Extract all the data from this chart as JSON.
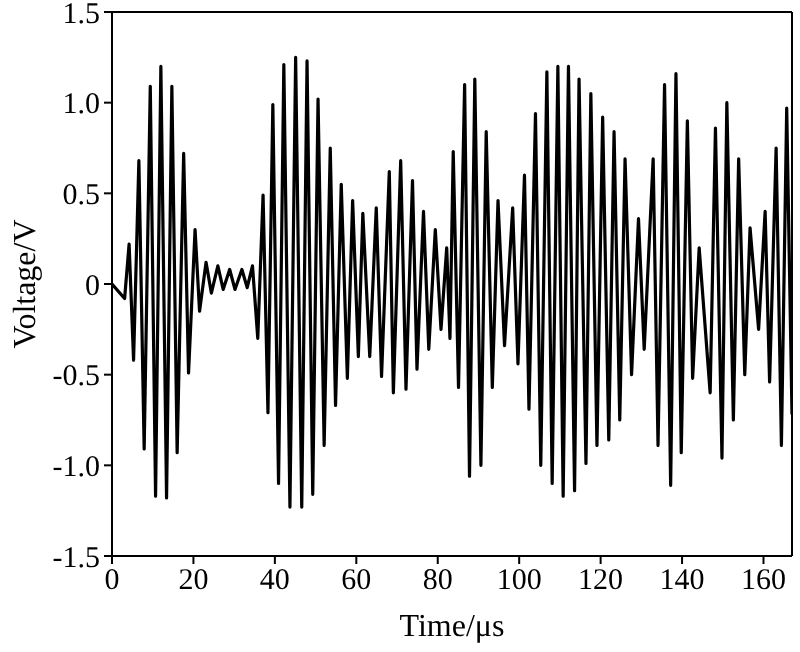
{
  "chart_data": {
    "type": "line",
    "xlabel": "Time/μs",
    "ylabel": "Voltage/V",
    "xlim": [
      0,
      167
    ],
    "xticks": [
      0,
      20,
      40,
      60,
      80,
      100,
      120,
      140,
      160
    ],
    "ylim": [
      -1.5,
      1.5
    ],
    "yticks": [
      -1.5,
      {
        "value": -1,
        "label": "-1.0"
      },
      -0.5,
      0,
      0.5,
      {
        "value": 1,
        "label": "1.0"
      },
      1.5
    ],
    "legend": false,
    "marker": "none",
    "line_style": "solid",
    "series": [
      {
        "color": "#000000",
        "x": [
          0,
          3.1,
          4.2,
          5.3,
          6.6,
          7.9,
          9.4,
          10.7,
          12.0,
          13.4,
          14.7,
          16.0,
          17.6,
          18.8,
          20.4,
          21.5,
          23.1,
          24.4,
          26.0,
          27.3,
          28.9,
          30.2,
          31.9,
          33.2,
          34.5,
          35.8,
          37.1,
          38.3,
          39.5,
          40.9,
          42.2,
          43.7,
          45.1,
          46.6,
          47.9,
          49.3,
          50.6,
          52.1,
          53.6,
          54.9,
          56.3,
          57.8,
          59.1,
          60.5,
          61.6,
          63.3,
          64.9,
          66.2,
          68.1,
          69.1,
          70.9,
          72.2,
          73.8,
          74.9,
          76.5,
          77.8,
          79.4,
          80.8,
          82.2,
          83.0,
          83.8,
          85.1,
          86.6,
          87.8,
          89.1,
          90.6,
          91.9,
          93.4,
          94.8,
          96.4,
          98.4,
          99.7,
          101.3,
          102.4,
          104.0,
          105.3,
          106.8,
          108.1,
          109.5,
          110.8,
          112.1,
          113.6,
          114.7,
          116.4,
          117.6,
          119.1,
          120.5,
          122.0,
          123.3,
          124.7,
          126.0,
          127.6,
          129.3,
          130.7,
          132.9,
          134.1,
          135.7,
          137.2,
          138.5,
          139.8,
          141.3,
          142.6,
          144.2,
          146.9,
          148.2,
          149.8,
          151.0,
          152.6,
          153.9,
          155.4,
          156.7,
          158.8,
          160.4,
          161.5,
          163.1,
          164.4,
          165.7,
          167.0
        ],
        "values": [
          0,
          -0.08,
          0.22,
          -0.42,
          0.68,
          -0.91,
          1.09,
          -1.17,
          1.2,
          -1.18,
          1.09,
          -0.93,
          0.72,
          -0.49,
          0.3,
          -0.15,
          0.12,
          -0.05,
          0.1,
          -0.03,
          0.08,
          -0.03,
          0.08,
          -0.02,
          0.1,
          -0.3,
          0.49,
          -0.71,
          0.99,
          -1.1,
          1.21,
          -1.23,
          1.25,
          -1.23,
          1.23,
          -1.16,
          1.02,
          -0.89,
          0.75,
          -0.67,
          0.55,
          -0.52,
          0.46,
          -0.4,
          0.39,
          -0.4,
          0.42,
          -0.51,
          0.62,
          -0.6,
          0.68,
          -0.58,
          0.57,
          -0.47,
          0.4,
          -0.36,
          0.3,
          -0.25,
          0.2,
          -0.3,
          0.73,
          -0.57,
          1.1,
          -1.06,
          1.13,
          -1.0,
          0.84,
          -0.57,
          0.46,
          -0.34,
          0.42,
          -0.44,
          0.6,
          -0.69,
          0.94,
          -1.0,
          1.17,
          -1.1,
          1.2,
          -1.17,
          1.2,
          -1.14,
          1.13,
          -0.99,
          1.05,
          -0.89,
          0.92,
          -0.86,
          0.84,
          -0.75,
          0.69,
          -0.5,
          0.36,
          -0.36,
          0.69,
          -0.89,
          1.1,
          -1.11,
          1.16,
          -0.93,
          0.9,
          -0.52,
          0.2,
          -0.6,
          0.86,
          -0.96,
          1.0,
          -0.75,
          0.69,
          -0.5,
          0.31,
          -0.25,
          0.4,
          -0.54,
          0.75,
          -0.89,
          0.97,
          -0.72
        ]
      }
    ]
  }
}
